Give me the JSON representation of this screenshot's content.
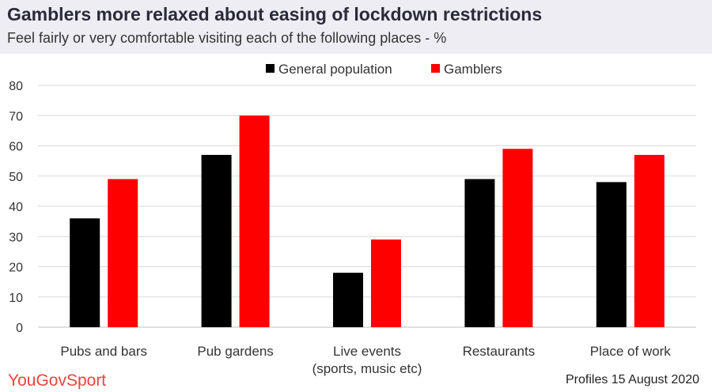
{
  "header": {
    "title": "Gamblers more relaxed about easing of lockdown restrictions",
    "subtitle": "Feel fairly or very comfortable visiting each of the following places - %"
  },
  "footer": {
    "brand_main": "YouGov",
    "brand_sub": "Sport",
    "source": "Profiles 15 August 2020"
  },
  "colors": {
    "general": "#000000",
    "gamblers": "#ff0000",
    "grid": "#d9d9d9"
  },
  "chart_data": {
    "type": "bar",
    "title": "Gamblers more relaxed about easing of lockdown restrictions",
    "subtitle": "Feel fairly or very comfortable visiting each of the following places - %",
    "categories": [
      [
        "Pubs and bars"
      ],
      [
        "Pub gardens"
      ],
      [
        "Live events",
        "(sports, music etc)"
      ],
      [
        "Restaurants"
      ],
      [
        "Place of work"
      ]
    ],
    "series": [
      {
        "name": "General population",
        "values": [
          36,
          57,
          18,
          49,
          48
        ]
      },
      {
        "name": "Gamblers",
        "values": [
          49,
          70,
          29,
          59,
          57
        ]
      }
    ],
    "ylim": [
      0,
      80
    ],
    "yticks": [
      0,
      10,
      20,
      30,
      40,
      50,
      60,
      70,
      80
    ],
    "xlabel": "",
    "ylabel": "",
    "grid": true,
    "legend_position": "top-center"
  }
}
